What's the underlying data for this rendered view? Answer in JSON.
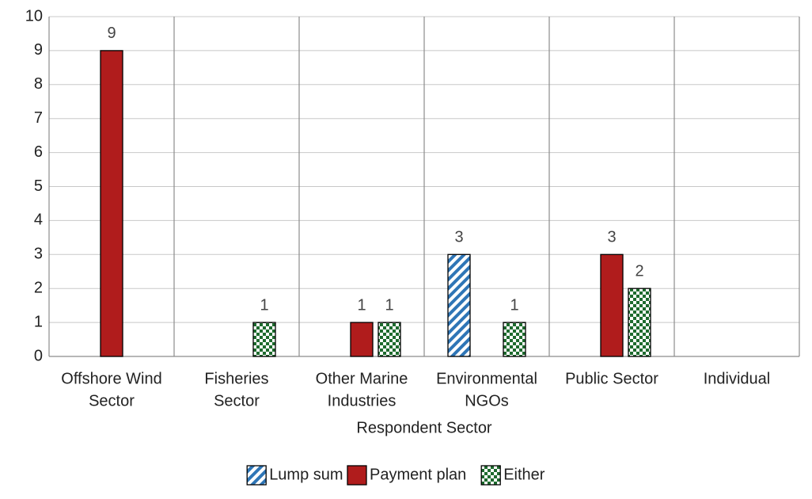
{
  "chart_data": {
    "type": "bar",
    "x_label": "Respondent Sector",
    "categories": [
      [
        "Offshore Wind",
        "Sector"
      ],
      [
        "Fisheries",
        "Sector"
      ],
      [
        "Other Marine",
        "Industries"
      ],
      [
        "Environmental",
        "NGOs"
      ],
      [
        "Public Sector"
      ],
      [
        "Individual"
      ]
    ],
    "series": [
      {
        "name": "Lump sum",
        "color": "#2e75b6",
        "pattern": "diagonal",
        "values": [
          null,
          null,
          null,
          3,
          null,
          null
        ]
      },
      {
        "name": "Payment plan",
        "color": "#b01c1c",
        "pattern": "solid",
        "values": [
          9,
          null,
          1,
          null,
          3,
          null
        ]
      },
      {
        "name": "Either",
        "color": "#1e6b2e",
        "pattern": "checker",
        "values": [
          null,
          1,
          1,
          1,
          2,
          null
        ]
      }
    ],
    "ylim": [
      0,
      10
    ],
    "yticks": [
      0,
      1,
      2,
      3,
      4,
      5,
      6,
      7,
      8,
      9,
      10
    ],
    "grid": true,
    "legend": "bottom"
  }
}
